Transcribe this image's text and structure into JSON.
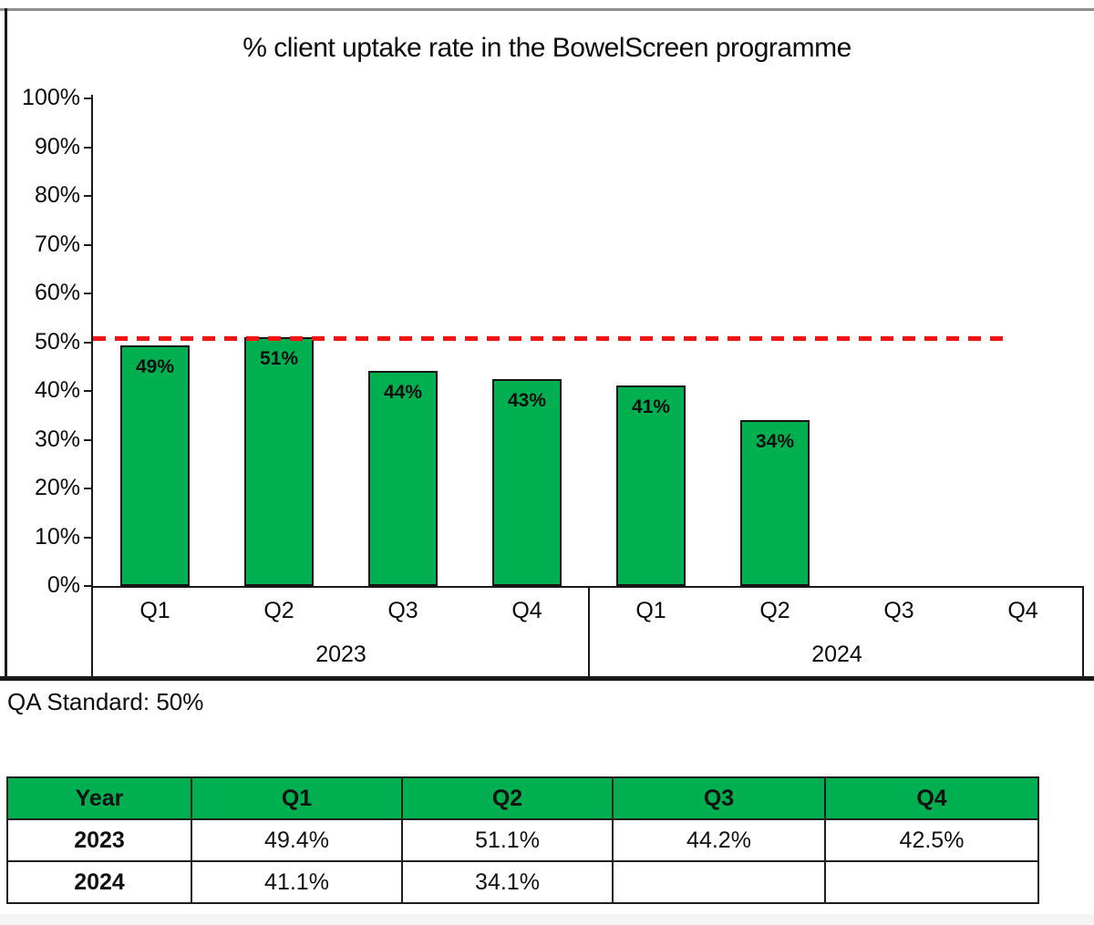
{
  "chart": {
    "title": "% client uptake rate in the BowelScreen programme",
    "qa_note": "QA Standard: 50%"
  },
  "chart_data": {
    "type": "bar",
    "title": "% client uptake rate in the BowelScreen programme",
    "categories": [
      "Q1",
      "Q2",
      "Q3",
      "Q4",
      "Q1",
      "Q2",
      "Q3",
      "Q4"
    ],
    "category_groups": [
      {
        "label": "2023",
        "span": 4
      },
      {
        "label": "2024",
        "span": 4
      }
    ],
    "series": [
      {
        "name": "% client uptake rate",
        "values": [
          49.4,
          51.1,
          44.2,
          42.5,
          41.1,
          34.1,
          null,
          null
        ]
      }
    ],
    "bar_labels": [
      "49%",
      "51%",
      "44%",
      "43%",
      "41%",
      "34%",
      "",
      ""
    ],
    "y_tick_labels": [
      "0%",
      "10%",
      "20%",
      "30%",
      "40%",
      "50%",
      "60%",
      "70%",
      "80%",
      "90%",
      "100%"
    ],
    "ylim": [
      0,
      100
    ],
    "grid": false,
    "legend": "none",
    "bar_color": "#00AF50",
    "bar_border_color": "#141414",
    "reference_line": {
      "value": 50,
      "color": "#ee1414",
      "style": "dashed",
      "meaning": "QA Standard: 50%"
    }
  },
  "table": {
    "headers": [
      "Year",
      "Q1",
      "Q2",
      "Q3",
      "Q4"
    ],
    "header_bg": "#00AF50",
    "rows": [
      {
        "year": "2023",
        "values": [
          "49.4%",
          "51.1%",
          "44.2%",
          "42.5%"
        ]
      },
      {
        "year": "2024",
        "values": [
          "41.1%",
          "34.1%",
          "",
          ""
        ]
      }
    ]
  }
}
